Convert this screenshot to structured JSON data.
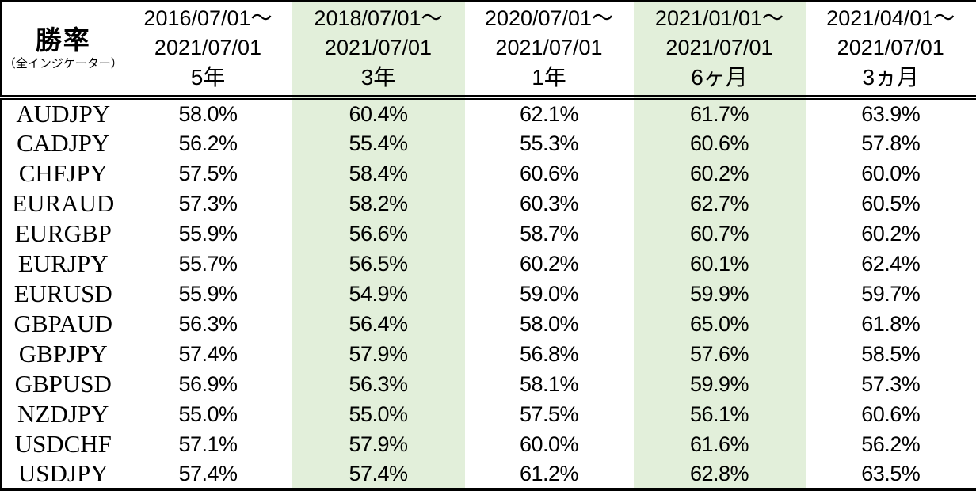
{
  "highlight_color": "#e2efda",
  "highlight_columns": [
    1,
    3
  ],
  "header": {
    "title": "勝率",
    "subtitle": "（全インジケーター）",
    "columns": [
      {
        "period_start": "2016/07/01～",
        "period_end": "2021/07/01",
        "duration": "5年"
      },
      {
        "period_start": "2018/07/01～",
        "period_end": "2021/07/01",
        "duration": "3年"
      },
      {
        "period_start": "2020/07/01～",
        "period_end": "2021/07/01",
        "duration": "1年"
      },
      {
        "period_start": "2021/01/01～",
        "period_end": "2021/07/01",
        "duration": "6ヶ月"
      },
      {
        "period_start": "2021/04/01～",
        "period_end": "2021/07/01",
        "duration": "3ヵ月"
      }
    ]
  },
  "rows": [
    {
      "pair": "AUDJPY",
      "values": [
        "58.0%",
        "60.4%",
        "62.1%",
        "61.7%",
        "63.9%"
      ]
    },
    {
      "pair": "CADJPY",
      "values": [
        "56.2%",
        "55.4%",
        "55.3%",
        "60.6%",
        "57.8%"
      ]
    },
    {
      "pair": "CHFJPY",
      "values": [
        "57.5%",
        "58.4%",
        "60.6%",
        "60.2%",
        "60.0%"
      ]
    },
    {
      "pair": "EURAUD",
      "values": [
        "57.3%",
        "58.2%",
        "60.3%",
        "62.7%",
        "60.5%"
      ]
    },
    {
      "pair": "EURGBP",
      "values": [
        "55.9%",
        "56.6%",
        "58.7%",
        "60.7%",
        "60.2%"
      ]
    },
    {
      "pair": "EURJPY",
      "values": [
        "55.7%",
        "56.5%",
        "60.2%",
        "60.1%",
        "62.4%"
      ]
    },
    {
      "pair": "EURUSD",
      "values": [
        "55.9%",
        "54.9%",
        "59.0%",
        "59.9%",
        "59.7%"
      ]
    },
    {
      "pair": "GBPAUD",
      "values": [
        "56.3%",
        "56.4%",
        "58.0%",
        "65.0%",
        "61.8%"
      ]
    },
    {
      "pair": "GBPJPY",
      "values": [
        "57.4%",
        "57.9%",
        "56.8%",
        "57.6%",
        "58.5%"
      ]
    },
    {
      "pair": "GBPUSD",
      "values": [
        "56.9%",
        "56.3%",
        "58.1%",
        "59.9%",
        "57.3%"
      ]
    },
    {
      "pair": "NZDJPY",
      "values": [
        "55.0%",
        "55.0%",
        "57.5%",
        "56.1%",
        "60.6%"
      ]
    },
    {
      "pair": "USDCHF",
      "values": [
        "57.1%",
        "57.9%",
        "60.0%",
        "61.6%",
        "56.2%"
      ]
    },
    {
      "pair": "USDJPY",
      "values": [
        "57.4%",
        "57.4%",
        "61.2%",
        "62.8%",
        "63.5%"
      ]
    }
  ],
  "chart_data": {
    "type": "table",
    "title": "勝率（全インジケーター）",
    "unit": "%",
    "categories": [
      "AUDJPY",
      "CADJPY",
      "CHFJPY",
      "EURAUD",
      "EURGBP",
      "EURJPY",
      "EURUSD",
      "GBPAUD",
      "GBPJPY",
      "GBPUSD",
      "NZDJPY",
      "USDCHF",
      "USDJPY"
    ],
    "series": [
      {
        "name": "2016/07/01～2021/07/01 5年",
        "values": [
          58.0,
          56.2,
          57.5,
          57.3,
          55.9,
          55.7,
          55.9,
          56.3,
          57.4,
          56.9,
          55.0,
          57.1,
          57.4
        ]
      },
      {
        "name": "2018/07/01～2021/07/01 3年",
        "values": [
          60.4,
          55.4,
          58.4,
          58.2,
          56.6,
          56.5,
          54.9,
          56.4,
          57.9,
          56.3,
          55.0,
          57.9,
          57.4
        ]
      },
      {
        "name": "2020/07/01～2021/07/01 1年",
        "values": [
          62.1,
          55.3,
          60.6,
          60.3,
          58.7,
          60.2,
          59.0,
          58.0,
          56.8,
          58.1,
          57.5,
          60.0,
          61.2
        ]
      },
      {
        "name": "2021/01/01～2021/07/01 6ヶ月",
        "values": [
          61.7,
          60.6,
          60.2,
          62.7,
          60.7,
          60.1,
          59.9,
          65.0,
          57.6,
          59.9,
          56.1,
          61.6,
          62.8
        ]
      },
      {
        "name": "2021/04/01～2021/07/01 3ヵ月",
        "values": [
          63.9,
          57.8,
          60.0,
          60.5,
          60.2,
          62.4,
          59.7,
          61.8,
          58.5,
          57.3,
          60.6,
          56.2,
          63.5
        ]
      }
    ],
    "layout_hints": {
      "highlighted_series": [
        "3年",
        "6ヶ月"
      ],
      "highlight_fill": "#e2efda",
      "grid": "outer-border-and-header-double-rule-only"
    }
  }
}
